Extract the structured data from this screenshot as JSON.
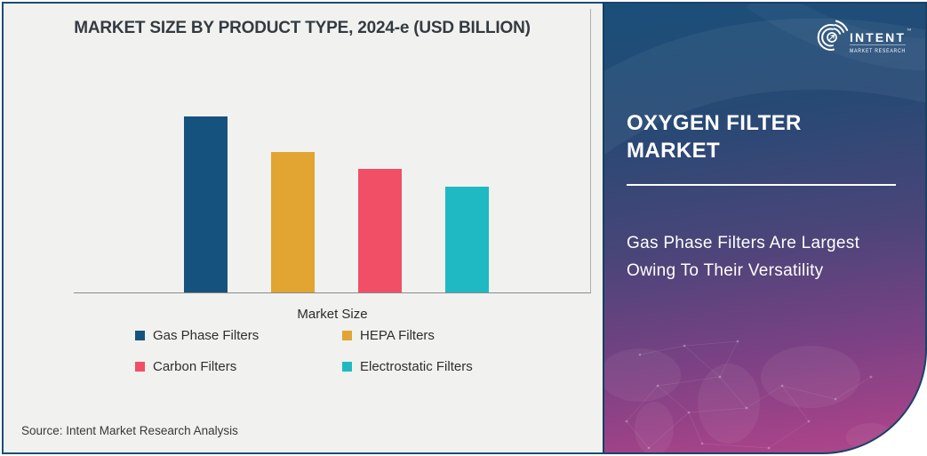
{
  "chart": {
    "title": "MARKET SIZE BY PRODUCT TYPE, 2024-e (USD BILLION)",
    "source": "Source: Intent Market Research Analysis"
  },
  "chart_data": {
    "type": "bar",
    "title": "MARKET SIZE BY PRODUCT TYPE, 2024-e (USD BILLION)",
    "categories": [
      "Gas Phase Filters",
      "HEPA Filters",
      "Carbon Filters",
      "Electrostatic Filters"
    ],
    "values": [
      10,
      8,
      7,
      6
    ],
    "value_note": "y-axis has no tick labels; values are relative estimates read from bar heights",
    "colors": [
      "#15537e",
      "#e2a532",
      "#f04f66",
      "#1fb9c3"
    ],
    "xlabel": "Market Size",
    "ylabel": "",
    "ylim": [
      0,
      11.2
    ],
    "grid": false,
    "legend_position": "bottom"
  },
  "panel": {
    "title": "OXYGEN FILTER MARKET",
    "subtitle": "Gas Phase Filters Are Largest Owing To Their Versatility",
    "brand": {
      "name": "INTENT",
      "tm": "™",
      "tagline": "MARKET RESEARCH"
    },
    "colors": {
      "gradient_top": "#1a4f7a",
      "gradient_bottom": "#ad4889",
      "frame_border": "#1b4e74",
      "chart_bg": "#f1f2f0"
    }
  }
}
